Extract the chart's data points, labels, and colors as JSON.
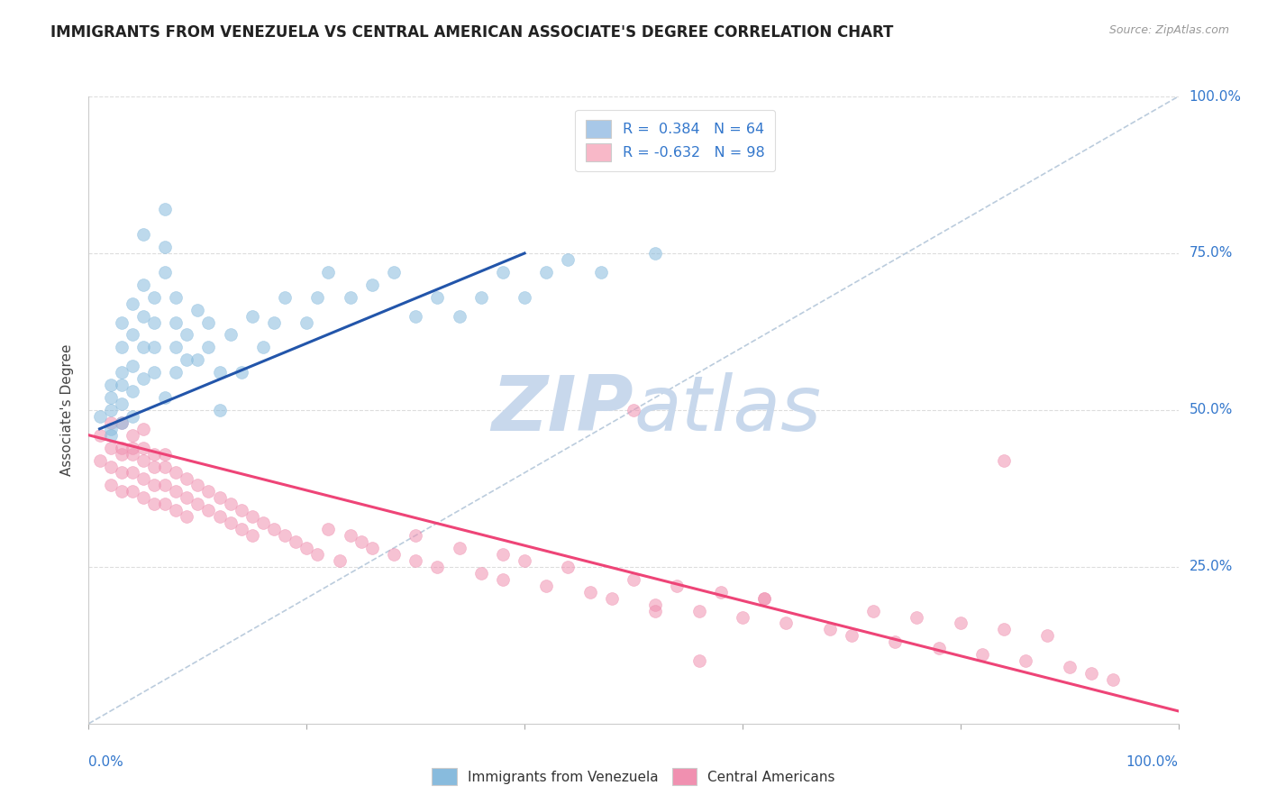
{
  "title": "IMMIGRANTS FROM VENEZUELA VS CENTRAL AMERICAN ASSOCIATE'S DEGREE CORRELATION CHART",
  "source_text": "Source: ZipAtlas.com",
  "ylabel": "Associate's Degree",
  "xlim": [
    0.0,
    1.0
  ],
  "ylim": [
    0.0,
    1.0
  ],
  "ytick_labels": [
    "25.0%",
    "50.0%",
    "75.0%",
    "100.0%"
  ],
  "ytick_positions": [
    0.25,
    0.5,
    0.75,
    1.0
  ],
  "legend_r_entries": [
    {
      "label": "R =  0.384   N = 64",
      "facecolor": "#a8c8e8"
    },
    {
      "label": "R = -0.632   N = 98",
      "facecolor": "#f8b8c8"
    }
  ],
  "blue_color": "#88bbdd",
  "pink_color": "#f090b0",
  "blue_line_color": "#2255aa",
  "pink_line_color": "#ee4477",
  "diag_line_color": "#bbccdd",
  "watermark_zip": "ZIP",
  "watermark_atlas": "atlas",
  "watermark_color_zip": "#c8d8ec",
  "watermark_color_atlas": "#c8d8ec",
  "background_color": "#ffffff",
  "grid_color": "#dddddd",
  "title_color": "#222222",
  "axis_label_color": "#444444",
  "tick_label_color": "#3377cc",
  "blue_scatter_x": [
    0.01,
    0.02,
    0.02,
    0.02,
    0.02,
    0.02,
    0.03,
    0.03,
    0.03,
    0.03,
    0.03,
    0.03,
    0.04,
    0.04,
    0.04,
    0.04,
    0.04,
    0.05,
    0.05,
    0.05,
    0.05,
    0.05,
    0.06,
    0.06,
    0.06,
    0.06,
    0.07,
    0.07,
    0.07,
    0.07,
    0.08,
    0.08,
    0.08,
    0.08,
    0.09,
    0.09,
    0.1,
    0.1,
    0.11,
    0.11,
    0.12,
    0.12,
    0.13,
    0.14,
    0.15,
    0.16,
    0.17,
    0.18,
    0.2,
    0.21,
    0.22,
    0.24,
    0.26,
    0.28,
    0.3,
    0.32,
    0.34,
    0.36,
    0.38,
    0.4,
    0.42,
    0.44,
    0.47,
    0.52
  ],
  "blue_scatter_y": [
    0.49,
    0.5,
    0.47,
    0.52,
    0.54,
    0.46,
    0.51,
    0.54,
    0.48,
    0.56,
    0.6,
    0.64,
    0.53,
    0.57,
    0.62,
    0.67,
    0.49,
    0.55,
    0.6,
    0.65,
    0.7,
    0.78,
    0.56,
    0.6,
    0.64,
    0.68,
    0.72,
    0.76,
    0.82,
    0.52,
    0.56,
    0.6,
    0.64,
    0.68,
    0.58,
    0.62,
    0.66,
    0.58,
    0.6,
    0.64,
    0.5,
    0.56,
    0.62,
    0.56,
    0.65,
    0.6,
    0.64,
    0.68,
    0.64,
    0.68,
    0.72,
    0.68,
    0.7,
    0.72,
    0.65,
    0.68,
    0.65,
    0.68,
    0.72,
    0.68,
    0.72,
    0.74,
    0.72,
    0.75
  ],
  "pink_scatter_x": [
    0.01,
    0.01,
    0.02,
    0.02,
    0.02,
    0.02,
    0.03,
    0.03,
    0.03,
    0.03,
    0.03,
    0.04,
    0.04,
    0.04,
    0.04,
    0.04,
    0.05,
    0.05,
    0.05,
    0.05,
    0.05,
    0.06,
    0.06,
    0.06,
    0.06,
    0.07,
    0.07,
    0.07,
    0.07,
    0.08,
    0.08,
    0.08,
    0.09,
    0.09,
    0.09,
    0.1,
    0.1,
    0.11,
    0.11,
    0.12,
    0.12,
    0.13,
    0.13,
    0.14,
    0.14,
    0.15,
    0.15,
    0.16,
    0.17,
    0.18,
    0.19,
    0.2,
    0.21,
    0.22,
    0.23,
    0.24,
    0.25,
    0.26,
    0.28,
    0.3,
    0.3,
    0.32,
    0.34,
    0.36,
    0.38,
    0.38,
    0.4,
    0.42,
    0.44,
    0.46,
    0.48,
    0.5,
    0.52,
    0.54,
    0.56,
    0.58,
    0.6,
    0.62,
    0.64,
    0.68,
    0.7,
    0.72,
    0.74,
    0.76,
    0.78,
    0.8,
    0.82,
    0.84,
    0.86,
    0.88,
    0.9,
    0.92,
    0.94,
    0.84,
    0.5,
    0.52,
    0.56,
    0.62
  ],
  "pink_scatter_y": [
    0.46,
    0.42,
    0.44,
    0.41,
    0.38,
    0.48,
    0.43,
    0.4,
    0.37,
    0.44,
    0.48,
    0.43,
    0.4,
    0.37,
    0.44,
    0.46,
    0.42,
    0.39,
    0.36,
    0.44,
    0.47,
    0.41,
    0.38,
    0.35,
    0.43,
    0.41,
    0.38,
    0.35,
    0.43,
    0.4,
    0.37,
    0.34,
    0.39,
    0.36,
    0.33,
    0.38,
    0.35,
    0.37,
    0.34,
    0.36,
    0.33,
    0.35,
    0.32,
    0.34,
    0.31,
    0.33,
    0.3,
    0.32,
    0.31,
    0.3,
    0.29,
    0.28,
    0.27,
    0.31,
    0.26,
    0.3,
    0.29,
    0.28,
    0.27,
    0.26,
    0.3,
    0.25,
    0.28,
    0.24,
    0.27,
    0.23,
    0.26,
    0.22,
    0.25,
    0.21,
    0.2,
    0.23,
    0.19,
    0.22,
    0.18,
    0.21,
    0.17,
    0.2,
    0.16,
    0.15,
    0.14,
    0.18,
    0.13,
    0.17,
    0.12,
    0.16,
    0.11,
    0.15,
    0.1,
    0.14,
    0.09,
    0.08,
    0.07,
    0.42,
    0.5,
    0.18,
    0.1,
    0.2
  ],
  "blue_trend_x": [
    0.01,
    0.4
  ],
  "blue_trend_y": [
    0.47,
    0.75
  ],
  "pink_trend_x": [
    0.0,
    1.0
  ],
  "pink_trend_y": [
    0.46,
    0.02
  ]
}
